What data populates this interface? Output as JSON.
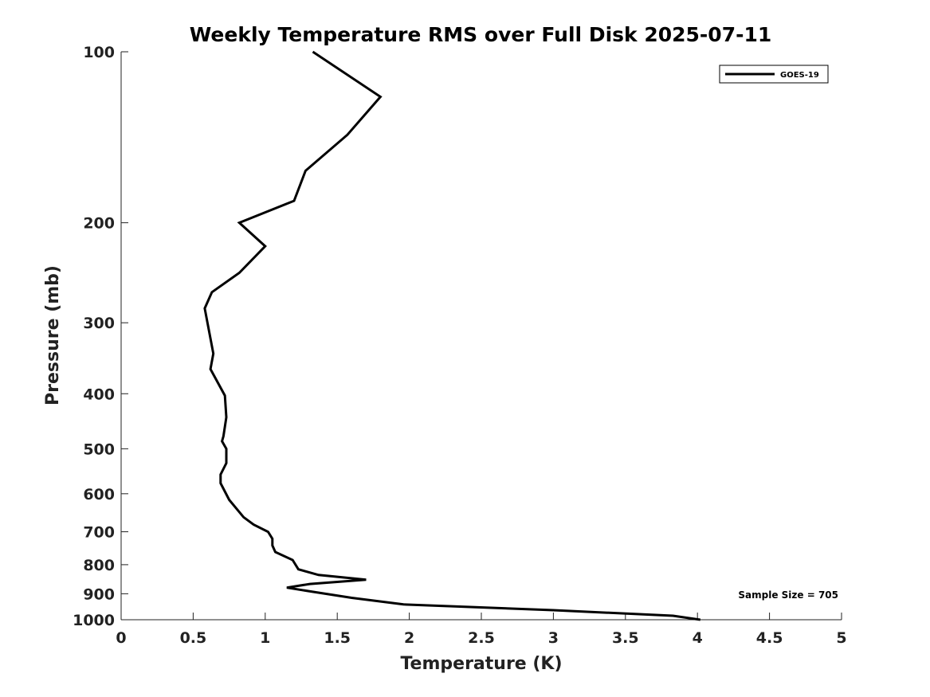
{
  "chart_data": {
    "type": "line",
    "title": "Weekly Temperature RMS over Full Disk 2025-07-11",
    "xlabel": "Temperature (K)",
    "ylabel": "Pressure (mb)",
    "xlim": [
      0,
      5
    ],
    "ylim": [
      1000,
      100
    ],
    "y_scale": "log",
    "y_reversed": true,
    "x_ticks": [
      "0",
      "0.5",
      "1",
      "1.5",
      "2",
      "2.5",
      "3",
      "3.5",
      "4",
      "4.5",
      "5"
    ],
    "x_tick_values": [
      0,
      0.5,
      1,
      1.5,
      2,
      2.5,
      3,
      3.5,
      4,
      4.5,
      5
    ],
    "y_ticks": [
      "100",
      "200",
      "300",
      "400",
      "500",
      "600",
      "700",
      "800",
      "900",
      "1000"
    ],
    "y_tick_values": [
      100,
      200,
      300,
      400,
      500,
      600,
      700,
      800,
      900,
      1000
    ],
    "grid": false,
    "legend_position": "top-right",
    "annotation": "Sample Size = 705",
    "series": [
      {
        "name": "GOES-19",
        "color": "#000000",
        "points": [
          {
            "x": 1.33,
            "p": 100
          },
          {
            "x": 1.8,
            "p": 120
          },
          {
            "x": 1.57,
            "p": 140
          },
          {
            "x": 1.28,
            "p": 162
          },
          {
            "x": 1.2,
            "p": 183
          },
          {
            "x": 0.82,
            "p": 200
          },
          {
            "x": 1.0,
            "p": 220
          },
          {
            "x": 0.82,
            "p": 245
          },
          {
            "x": 0.63,
            "p": 265
          },
          {
            "x": 0.58,
            "p": 283
          },
          {
            "x": 0.64,
            "p": 340
          },
          {
            "x": 0.62,
            "p": 362
          },
          {
            "x": 0.72,
            "p": 403
          },
          {
            "x": 0.73,
            "p": 440
          },
          {
            "x": 0.71,
            "p": 475
          },
          {
            "x": 0.7,
            "p": 485
          },
          {
            "x": 0.73,
            "p": 500
          },
          {
            "x": 0.73,
            "p": 530
          },
          {
            "x": 0.69,
            "p": 555
          },
          {
            "x": 0.69,
            "p": 575
          },
          {
            "x": 0.75,
            "p": 615
          },
          {
            "x": 0.85,
            "p": 660
          },
          {
            "x": 0.92,
            "p": 680
          },
          {
            "x": 1.02,
            "p": 700
          },
          {
            "x": 1.05,
            "p": 720
          },
          {
            "x": 1.05,
            "p": 740
          },
          {
            "x": 1.07,
            "p": 760
          },
          {
            "x": 1.19,
            "p": 785
          },
          {
            "x": 1.23,
            "p": 815
          },
          {
            "x": 1.37,
            "p": 834
          },
          {
            "x": 1.7,
            "p": 850
          },
          {
            "x": 1.31,
            "p": 865
          },
          {
            "x": 1.15,
            "p": 878
          },
          {
            "x": 1.32,
            "p": 892
          },
          {
            "x": 1.6,
            "p": 915
          },
          {
            "x": 1.96,
            "p": 940
          },
          {
            "x": 3.0,
            "p": 962
          },
          {
            "x": 3.83,
            "p": 984
          },
          {
            "x": 4.02,
            "p": 1000
          }
        ]
      }
    ]
  }
}
